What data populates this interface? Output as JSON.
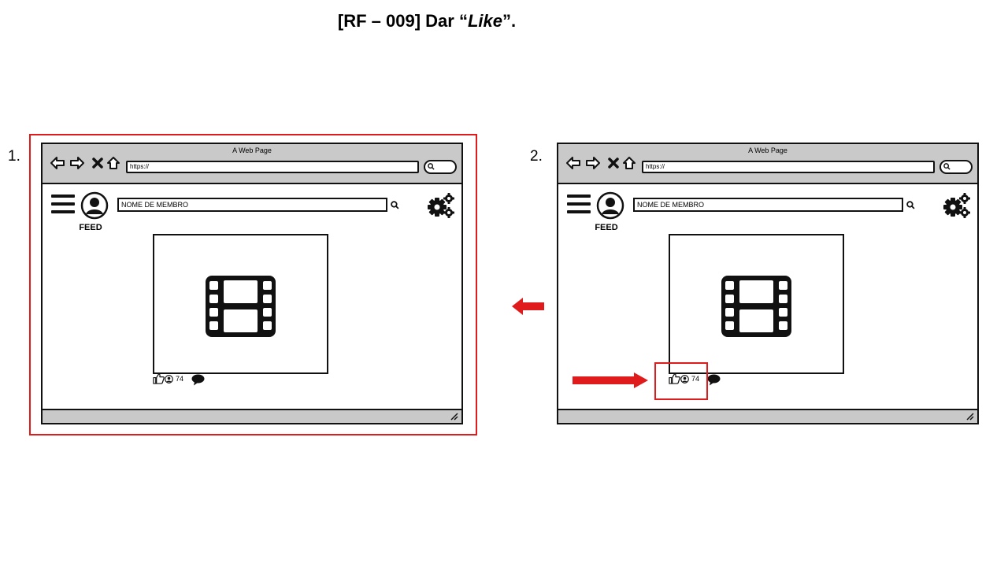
{
  "page": {
    "title_prefix": "[RF – 009] Dar “",
    "title_emph": "Like",
    "title_suffix": "”."
  },
  "steps": [
    {
      "number": "1.",
      "window_title": "A Web Page",
      "url": "https://",
      "search_placeholder": "NOME DE MEMBRO",
      "nav_label": "FEED",
      "like_count": "74"
    },
    {
      "number": "2.",
      "window_title": "A Web Page",
      "url": "https://",
      "search_placeholder": "NOME DE MEMBRO",
      "nav_label": "FEED",
      "like_count": "74"
    }
  ],
  "colors": {
    "annotation_red": "#e01b1b",
    "chrome_gray": "#c9c9c9"
  },
  "icons": [
    "back-arrow-icon",
    "forward-arrow-icon",
    "close-icon",
    "home-icon",
    "menu-icon",
    "avatar-icon",
    "search-icon",
    "gear-icon",
    "film-icon",
    "like-icon",
    "person-icon",
    "comment-icon",
    "resize-icon"
  ]
}
